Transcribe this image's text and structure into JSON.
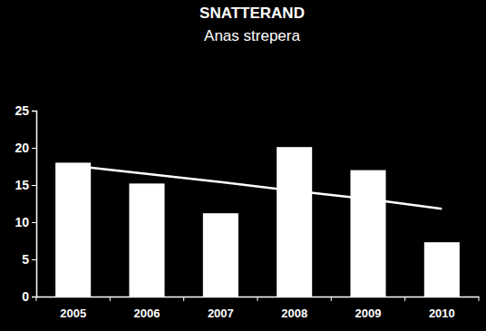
{
  "chart_data": {
    "type": "bar",
    "title": "SNATTERAND",
    "subtitle": "Anas strepera",
    "categories": [
      "2005",
      "2006",
      "2007",
      "2008",
      "2009",
      "2010"
    ],
    "series": [
      {
        "type": "bar",
        "color": "#ffffff",
        "values": [
          18,
          15.2,
          11.2,
          20.1,
          17,
          7.3
        ]
      },
      {
        "type": "line",
        "color": "#ffffff",
        "values": [
          17.6,
          16.5,
          15.4,
          14.2,
          13.1,
          11.8
        ]
      }
    ],
    "ylim": [
      0,
      25
    ],
    "yticks": [
      0,
      5,
      10,
      15,
      20,
      25
    ],
    "grid": false
  }
}
